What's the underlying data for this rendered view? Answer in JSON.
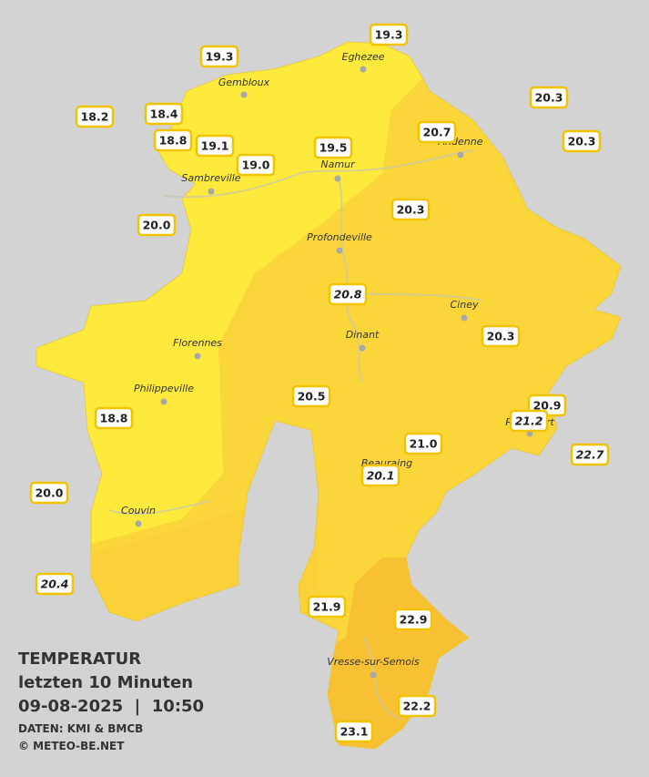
{
  "legend": {
    "title": "TEMPERATUR",
    "period": "letzten 10 Minuten",
    "datetime": "09-08-2025  |  10:50",
    "source": "DATEN: KMI & BMCB",
    "copyright": "© METEO-BE.NET"
  },
  "cities": [
    "Eghezee",
    "Gembloux",
    "Andenne",
    "Namur",
    "Sambreville",
    "Profondeville",
    "Ciney",
    "Florennes",
    "Dinant",
    "Philippeville",
    "Rochefort",
    "Beauraing",
    "Couvin",
    "Vresse-sur-Semois"
  ],
  "stations": [
    "19.3",
    "19.3",
    "20.3",
    "18.2",
    "18.4",
    "20.7",
    "20.3",
    "18.8",
    "19.1",
    "19.5",
    "19.0",
    "20.3",
    "20.0",
    "20.8",
    "20.3",
    "20.5",
    "18.8",
    "20.9",
    "21.2",
    "21.0",
    "22.7",
    "20.1",
    "20.0",
    "20.4",
    "21.9",
    "22.9",
    "22.2",
    "23.1"
  ],
  "italic_stations": [
    13,
    18,
    20,
    21,
    23
  ]
}
